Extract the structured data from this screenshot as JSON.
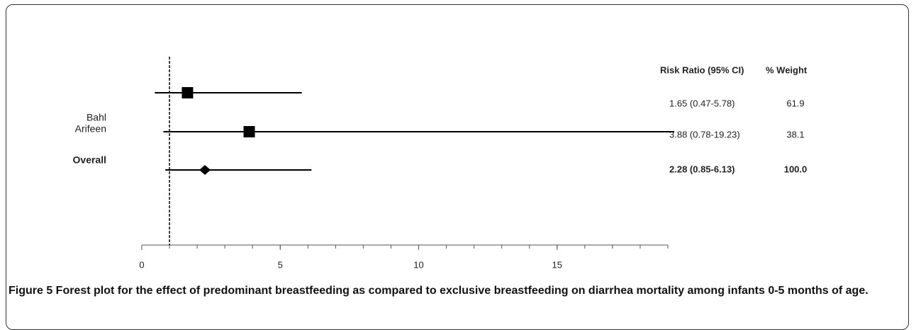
{
  "chart_data": {
    "type": "forest",
    "categories": [
      "Bahl",
      "Arifeen",
      "Overall"
    ],
    "values": [
      1.65,
      3.88,
      2.28
    ],
    "lower": [
      0.47,
      0.78,
      0.85
    ],
    "upper": [
      5.78,
      19.23,
      6.13
    ],
    "value_labels": [
      "1.65 (0.47-5.78)",
      "3.88 (0.78-19.23)",
      "2.28 (0.85-6.13)"
    ],
    "weights": [
      "61.9",
      "38.1",
      "100.0"
    ],
    "markers": [
      "square",
      "square",
      "diamond"
    ],
    "color": "#000000",
    "column_headers": [
      "Risk Ratio (95% CI)",
      "% Weight"
    ],
    "reference_line": 1,
    "xlim": [
      0,
      19
    ],
    "xticks": [
      0,
      5,
      10,
      15
    ],
    "minor_tick_step": 1,
    "caption": {
      "label": "Figure 5",
      "text": " Forest plot for the effect of predominant breastfeeding as compared to exclusive breastfeeding on diarrhea mortality among infants 0-5 months of age."
    }
  }
}
